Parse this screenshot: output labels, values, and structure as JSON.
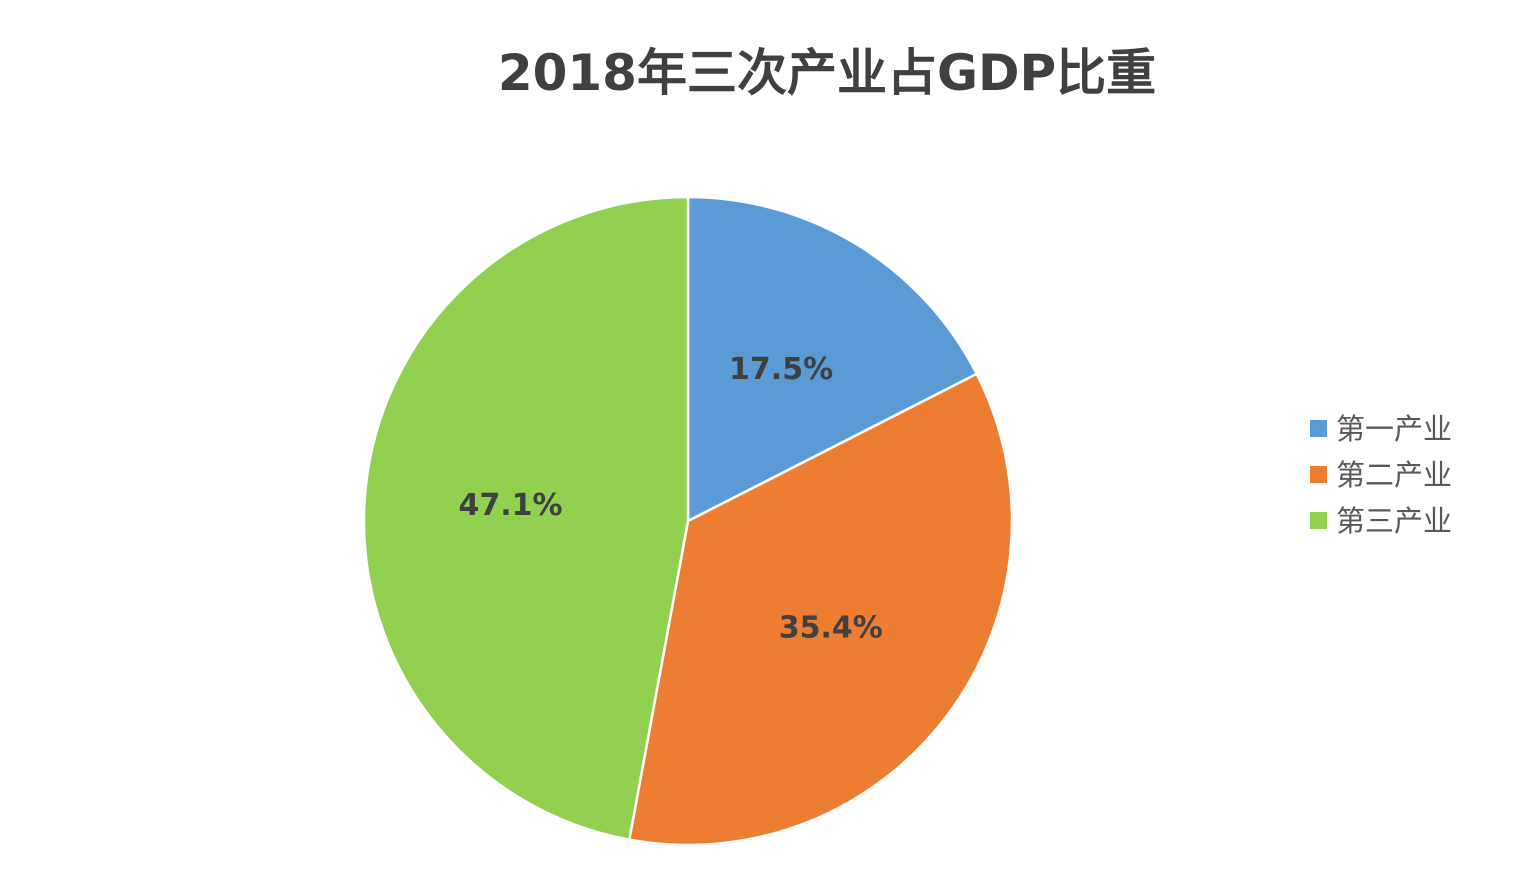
{
  "chart_data": {
    "type": "pie",
    "title": "2018年三次产业占GDP比重",
    "categories": [
      "第一产业",
      "第二产业",
      "第三产业"
    ],
    "values": [
      17.5,
      35.4,
      47.1
    ],
    "data_labels": [
      "17.5%",
      "35.4%",
      "47.1%"
    ],
    "colors": [
      "#5B9BD5",
      "#ED7D31",
      "#92D050"
    ],
    "legend_position": "right",
    "start_angle": "12 o'clock",
    "direction": "clockwise"
  }
}
